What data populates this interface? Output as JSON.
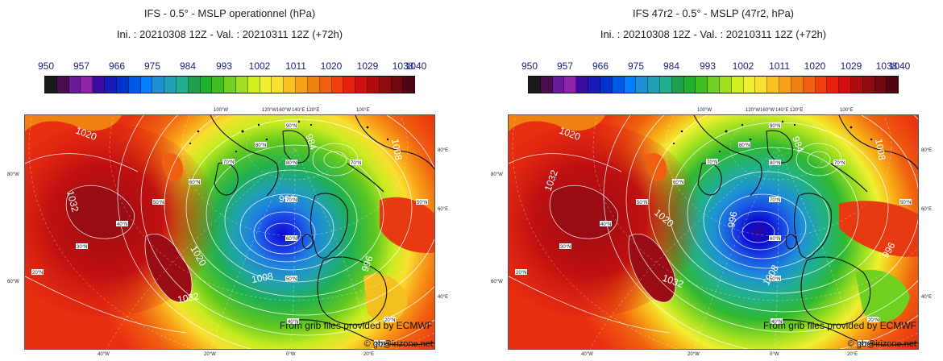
{
  "legend": {
    "labels": [
      "950",
      "957",
      "966",
      "975",
      "984",
      "993",
      "1002",
      "1011",
      "1020",
      "1029",
      "1038",
      "1040"
    ],
    "colors": [
      "#1a1a1a",
      "#4a0e4e",
      "#6a1b9a",
      "#8e24aa",
      "#3a0ca3",
      "#1a1ab8",
      "#0033cc",
      "#0059e6",
      "#0080ff",
      "#1e90d6",
      "#20a0b4",
      "#20b090",
      "#1fa050",
      "#20b030",
      "#40c020",
      "#70d020",
      "#a0e020",
      "#d0f020",
      "#f0f030",
      "#f8e030",
      "#f8c020",
      "#f8a018",
      "#f08010",
      "#f06010",
      "#f04010",
      "#e82010",
      "#d01010",
      "#b00c10",
      "#900a10",
      "#700810",
      "#500612"
    ]
  },
  "icon": {
    "pin": "location-pin-icon"
  },
  "panels": [
    {
      "id": "left",
      "title_line1": "IFS - 0.5° - MSLP operationnel (hPa)",
      "title_line2": "Ini. : 20210308 12Z - Val. : 20210311 12Z (+72h)",
      "credit_line1": "From grib files provided by ECMWF",
      "credit_line2": "© gb@irizone.net",
      "contour_labels": [
        {
          "text": "1032"
        },
        {
          "text": "1032"
        },
        {
          "text": "1020"
        },
        {
          "text": "1020"
        },
        {
          "text": "1008"
        },
        {
          "text": "996"
        },
        {
          "text": "984"
        },
        {
          "text": "996"
        },
        {
          "text": "1008"
        }
      ]
    },
    {
      "id": "right",
      "title_line1": "IFS 47r2 - 0.5° - MSLP (47r2, hPa)",
      "title_line2": "Ini. : 20210308 12Z - Val. : 20210311 12Z (+72h)",
      "credit_line1": "From grib files provided by ECMWF",
      "credit_line2": "© gb@irizone.net",
      "contour_labels": [
        {
          "text": "1032"
        },
        {
          "text": "1032"
        },
        {
          "text": "1020"
        },
        {
          "text": "1020"
        },
        {
          "text": "1008"
        },
        {
          "text": "996"
        },
        {
          "text": "984"
        },
        {
          "text": "996"
        },
        {
          "text": "1008"
        }
      ]
    }
  ],
  "grid": {
    "top_labels": [
      "100°W",
      "120°W",
      "160°W",
      "140°E",
      "120°E",
      "100°E"
    ],
    "bottom_labels": [
      "40°W",
      "20°W",
      "0°W",
      "20°E"
    ],
    "left_labels": [
      "80°W",
      "60°W"
    ],
    "right_labels": [
      "80°E",
      "60°E",
      "40°E"
    ],
    "lat_labels": [
      "90°N",
      "80°N",
      "80°N",
      "70°N",
      "70°N",
      "70°N",
      "60°N",
      "60°N",
      "50°N",
      "50°N",
      "50°N",
      "40°N",
      "40°N",
      "30°N",
      "30°N",
      "20°N",
      "20°N"
    ]
  }
}
